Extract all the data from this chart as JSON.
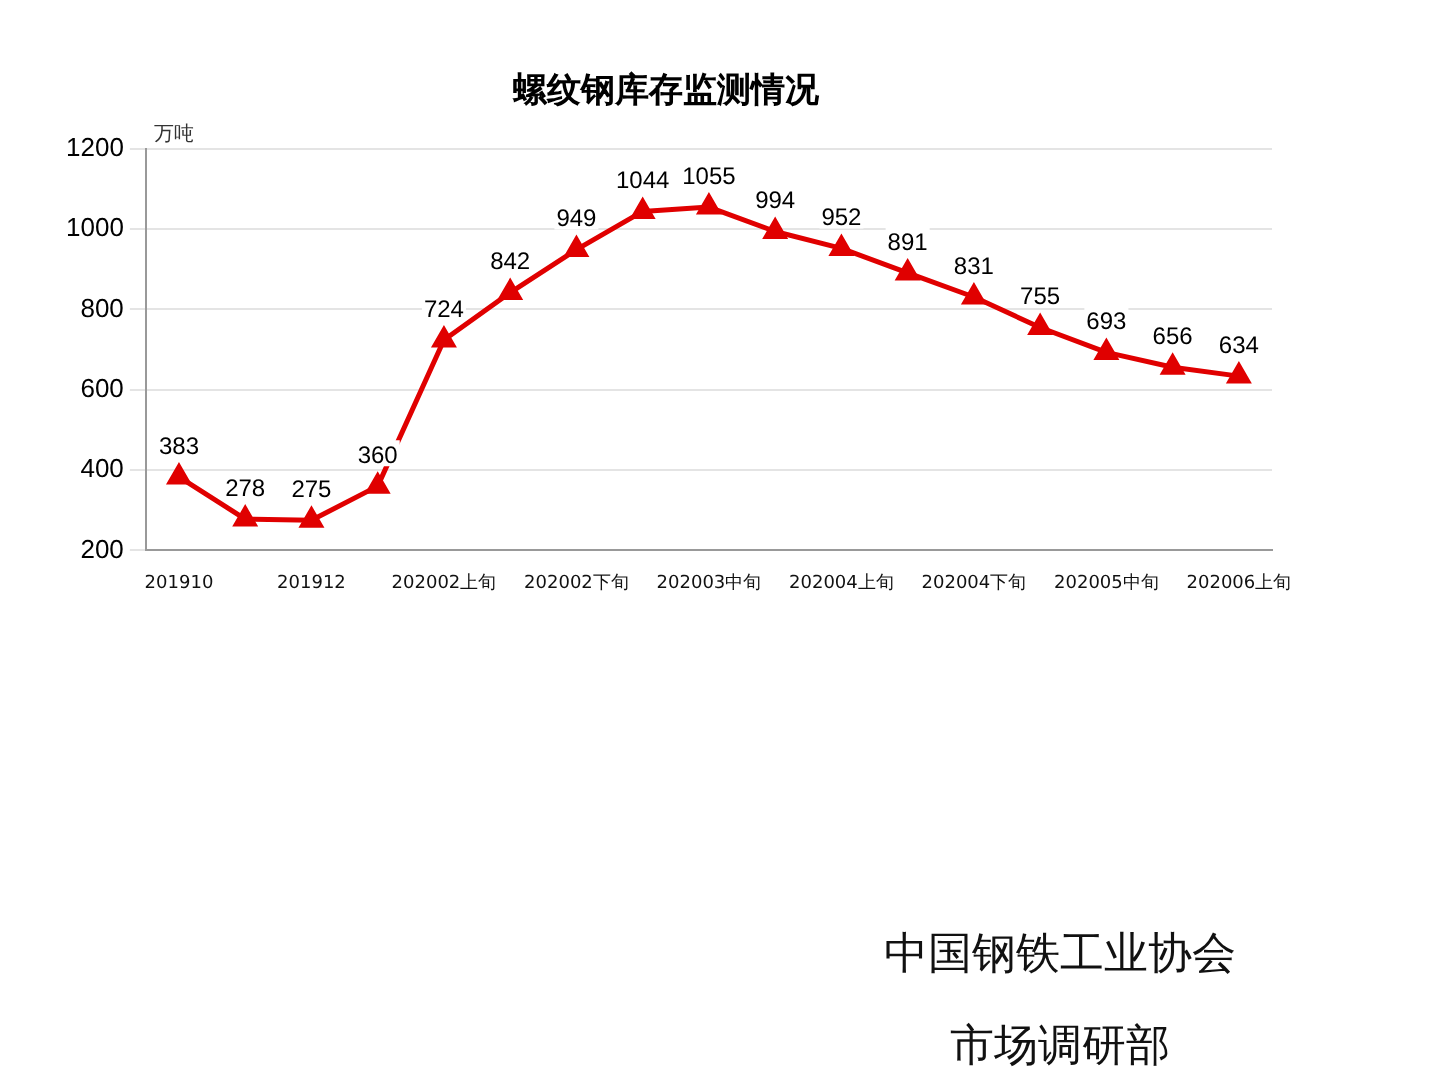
{
  "chart_data": {
    "type": "line",
    "title": "螺纹钢库存监测情况",
    "ylabel": "万吨",
    "categories": [
      "201910",
      null,
      "201912",
      null,
      "202002上旬",
      null,
      "202002下旬",
      null,
      "202003中旬",
      null,
      "202004上旬",
      null,
      "202004下旬",
      null,
      "202005中旬",
      null,
      "202006上旬"
    ],
    "series": [
      {
        "color": "#e00000",
        "values": [
          383,
          278,
          275,
          360,
          724,
          842,
          949,
          1044,
          1055,
          994,
          952,
          891,
          831,
          755,
          693,
          656,
          634
        ]
      }
    ],
    "ylim": [
      200,
      1200
    ],
    "yticks": [
      200,
      400,
      600,
      800,
      1000,
      1200
    ],
    "grid": "y",
    "legend": false,
    "marker": "triangle",
    "line_style": "solid",
    "data_labels": true,
    "annotations": [
      "中国钢铁工业协会",
      "市场调研部"
    ]
  }
}
